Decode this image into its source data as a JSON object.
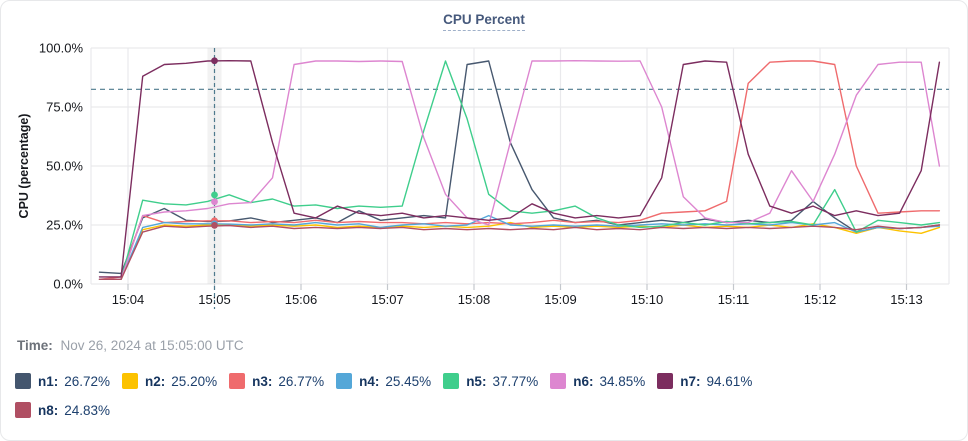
{
  "title": "CPU Percent",
  "time_row": {
    "label": "Time:",
    "value": "Nov 26, 2024 at 15:05:00 UTC"
  },
  "chart_data": {
    "type": "line",
    "title": "CPU Percent",
    "ylabel": "CPU (percentage)",
    "xlabel": "",
    "ylim": [
      0,
      100
    ],
    "grid": true,
    "legend_position": "bottom",
    "y_ticks": [
      "0.0%",
      "25.0%",
      "50.0%",
      "75.0%",
      "100.0%"
    ],
    "y_tick_percents": [
      0,
      25,
      50,
      75,
      100
    ],
    "x_ticks": [
      "15:04",
      "15:05",
      "15:06",
      "15:07",
      "15:08",
      "15:09",
      "15:10",
      "15:11",
      "15:12",
      "15:13"
    ],
    "threshold_percent": 82.5,
    "crosshair_minute": 1.0,
    "guide_color": "#4d7a8d",
    "hover_band_color": "#d9d9d9",
    "grid_color": "#e9e9ec",
    "tick_stub_color": "#c4c8cd",
    "x": [
      -0.33,
      -0.08,
      0.17,
      0.42,
      0.67,
      0.92,
      1.17,
      1.42,
      1.67,
      1.92,
      2.17,
      2.42,
      2.67,
      2.92,
      3.17,
      3.42,
      3.67,
      3.92,
      4.17,
      4.42,
      4.67,
      4.92,
      5.17,
      5.42,
      5.67,
      5.92,
      6.17,
      6.42,
      6.67,
      6.92,
      7.17,
      7.42,
      7.67,
      7.92,
      8.17,
      8.42,
      8.67,
      8.92,
      9.17,
      9.38
    ],
    "series": [
      {
        "name": "n1",
        "color": "#47586f",
        "marker": 26.72,
        "values": [
          5,
          4.5,
          28,
          32,
          27,
          26.5,
          26.7,
          28,
          26,
          27,
          28,
          26,
          31,
          27,
          28,
          29,
          28,
          93,
          94.5,
          60,
          40,
          28,
          26,
          27,
          25,
          26,
          27,
          26,
          27.5,
          26,
          27,
          26,
          27,
          35,
          28,
          22,
          24,
          23.5,
          24,
          25
        ]
      },
      {
        "name": "n2",
        "color": "#fcc200",
        "marker": 25.2,
        "values": [
          2,
          2,
          23,
          25,
          24.5,
          25,
          25.2,
          24.5,
          25,
          24.5,
          25,
          24,
          24.5,
          24,
          24.5,
          24,
          24.5,
          24,
          24.5,
          26,
          24,
          24.5,
          24,
          24.5,
          24,
          24.5,
          24,
          25,
          24,
          24.5,
          24,
          25,
          24,
          25.5,
          24,
          21.5,
          24,
          22.5,
          21.5,
          24
        ]
      },
      {
        "name": "n3",
        "color": "#ef6b6d",
        "marker": 26.77,
        "values": [
          2,
          3,
          29,
          26,
          26.5,
          26.8,
          26.8,
          26,
          26.5,
          26,
          27,
          26,
          26.5,
          26,
          26,
          25.5,
          26,
          25.5,
          26,
          25.5,
          26,
          27,
          26,
          26.5,
          26,
          27,
          30,
          30.5,
          31,
          35,
          85,
          94,
          94.5,
          94.5,
          93,
          50,
          30,
          30.5,
          31,
          31
        ]
      },
      {
        "name": "n4",
        "color": "#54a7d8",
        "marker": 25.45,
        "values": [
          2,
          2,
          24,
          26,
          25.5,
          25.5,
          25.4,
          25,
          25.5,
          25,
          26,
          25,
          25.5,
          24,
          25,
          25.5,
          24.5,
          25,
          29,
          25,
          24.5,
          25,
          24.5,
          25,
          24.5,
          25,
          25.5,
          25,
          25.5,
          25,
          25.5,
          25,
          26,
          25,
          26,
          22,
          24,
          23.5,
          24,
          24.5
        ]
      },
      {
        "name": "n5",
        "color": "#3fce8c",
        "marker": 37.77,
        "values": [
          2,
          2,
          35.5,
          34,
          33.5,
          35,
          37.8,
          34.5,
          36,
          33,
          33.5,
          32,
          33,
          32.5,
          33,
          65,
          94.5,
          70,
          38,
          31,
          30,
          31,
          33,
          28,
          25,
          24,
          24.5,
          26,
          25,
          26.5,
          25.5,
          26,
          26.5,
          25,
          40,
          22,
          27,
          26,
          25,
          26
        ]
      },
      {
        "name": "n6",
        "color": "#dd86d0",
        "marker": 34.85,
        "values": [
          2,
          2,
          29,
          30.5,
          31,
          32,
          34,
          34.5,
          45,
          93,
          94.5,
          94.5,
          94.3,
          94.5,
          94.3,
          62,
          38,
          28,
          25,
          60,
          94.5,
          94.5,
          94.6,
          94.5,
          94.4,
          94.5,
          75,
          37,
          28,
          26,
          26,
          30,
          48,
          35,
          55,
          80,
          93,
          94,
          94,
          50
        ]
      },
      {
        "name": "n7",
        "color": "#7c2d5f",
        "marker": 94.61,
        "values": [
          3,
          3,
          88,
          93,
          93.5,
          94.5,
          94.6,
          94.5,
          60,
          30,
          28,
          33,
          30,
          29,
          30,
          28,
          29,
          28,
          27,
          28,
          34,
          30,
          28,
          29,
          28,
          29,
          45,
          93,
          94.5,
          94,
          55,
          33,
          30,
          33,
          29,
          31,
          29,
          30,
          48,
          94
        ]
      },
      {
        "name": "n8",
        "color": "#b04f63",
        "marker": 24.83,
        "values": [
          2,
          2,
          22,
          24.5,
          24,
          24.5,
          24.8,
          24,
          24.5,
          23.5,
          24,
          23.5,
          24,
          23.5,
          24,
          23,
          23.5,
          23,
          23.5,
          23,
          23.5,
          23,
          24,
          23,
          23.5,
          23,
          24,
          23.5,
          24,
          23.5,
          24,
          23.5,
          24,
          24.5,
          24,
          23,
          24.5,
          23.5,
          24,
          25
        ]
      }
    ]
  },
  "legend": {
    "rows": [
      [
        {
          "label": "n1:",
          "value": "26.72%",
          "color": "#44566e"
        },
        {
          "label": "n2:",
          "value": "25.20%",
          "color": "#fcc200"
        },
        {
          "label": "n3:",
          "value": "26.77%",
          "color": "#ef6b6d"
        },
        {
          "label": "n4:",
          "value": "25.45%",
          "color": "#54a7d8"
        },
        {
          "label": "n5:",
          "value": "37.77%",
          "color": "#3fce8c"
        },
        {
          "label": "n6:",
          "value": "34.85%",
          "color": "#dd86d0"
        },
        {
          "label": "n7:",
          "value": "94.61%",
          "color": "#7c2d5f"
        }
      ],
      [
        {
          "label": "n8:",
          "value": "24.83%",
          "color": "#b04f63"
        }
      ]
    ]
  }
}
